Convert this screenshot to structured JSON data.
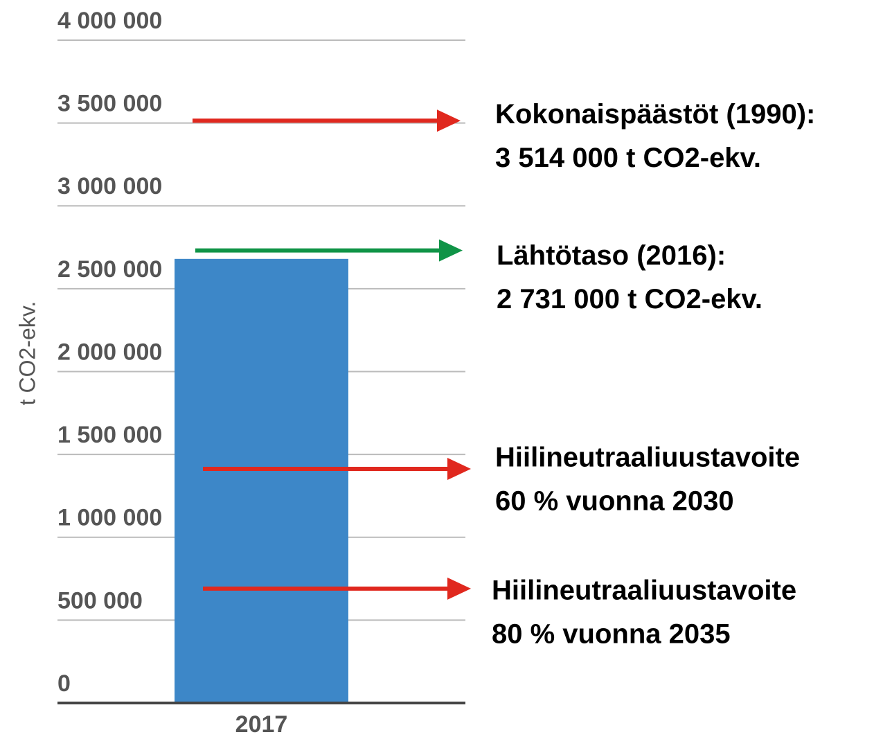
{
  "chart_data": {
    "type": "bar",
    "y_axis_label": "t CO2-ekv.",
    "categories": [
      "2017"
    ],
    "values": [
      2680000
    ],
    "color": "#3d87c8",
    "ylim": [
      0,
      4000000
    ],
    "yticks": [
      0,
      {
        "value": 500000,
        "label": "500 000"
      },
      {
        "value": 1000000,
        "label": "1 000 000"
      },
      {
        "value": 1500000,
        "label": "1 500 000"
      },
      {
        "value": 2000000,
        "label": "2 000 000"
      },
      {
        "value": 2500000,
        "label": "2 500 000"
      },
      {
        "value": 3000000,
        "label": "3 000 000"
      },
      {
        "value": 3500000,
        "label": "3 500 000"
      },
      {
        "value": 4000000,
        "label": "4 000 000"
      }
    ],
    "grid": true,
    "annotations": [
      {
        "y": 3514000,
        "color": "#e0281e",
        "text": [
          "Kokonaispäästöt (1990):",
          "3 514 000 t CO2-ekv."
        ]
      },
      {
        "y": 2731000,
        "color": "#109447",
        "text": [
          "Lähtötaso (2016):",
          "2 731 000 t CO2-ekv."
        ]
      },
      {
        "y": 1413000,
        "color": "#e0281e",
        "text": [
          "Hiilineutraaliuustavoite",
          "60 %  vuonna 2030"
        ]
      },
      {
        "y": 690000,
        "color": "#e0281e",
        "text": [
          "Hiilineutraaliuustavoite",
          "80 % vuonna 2035"
        ]
      }
    ]
  }
}
